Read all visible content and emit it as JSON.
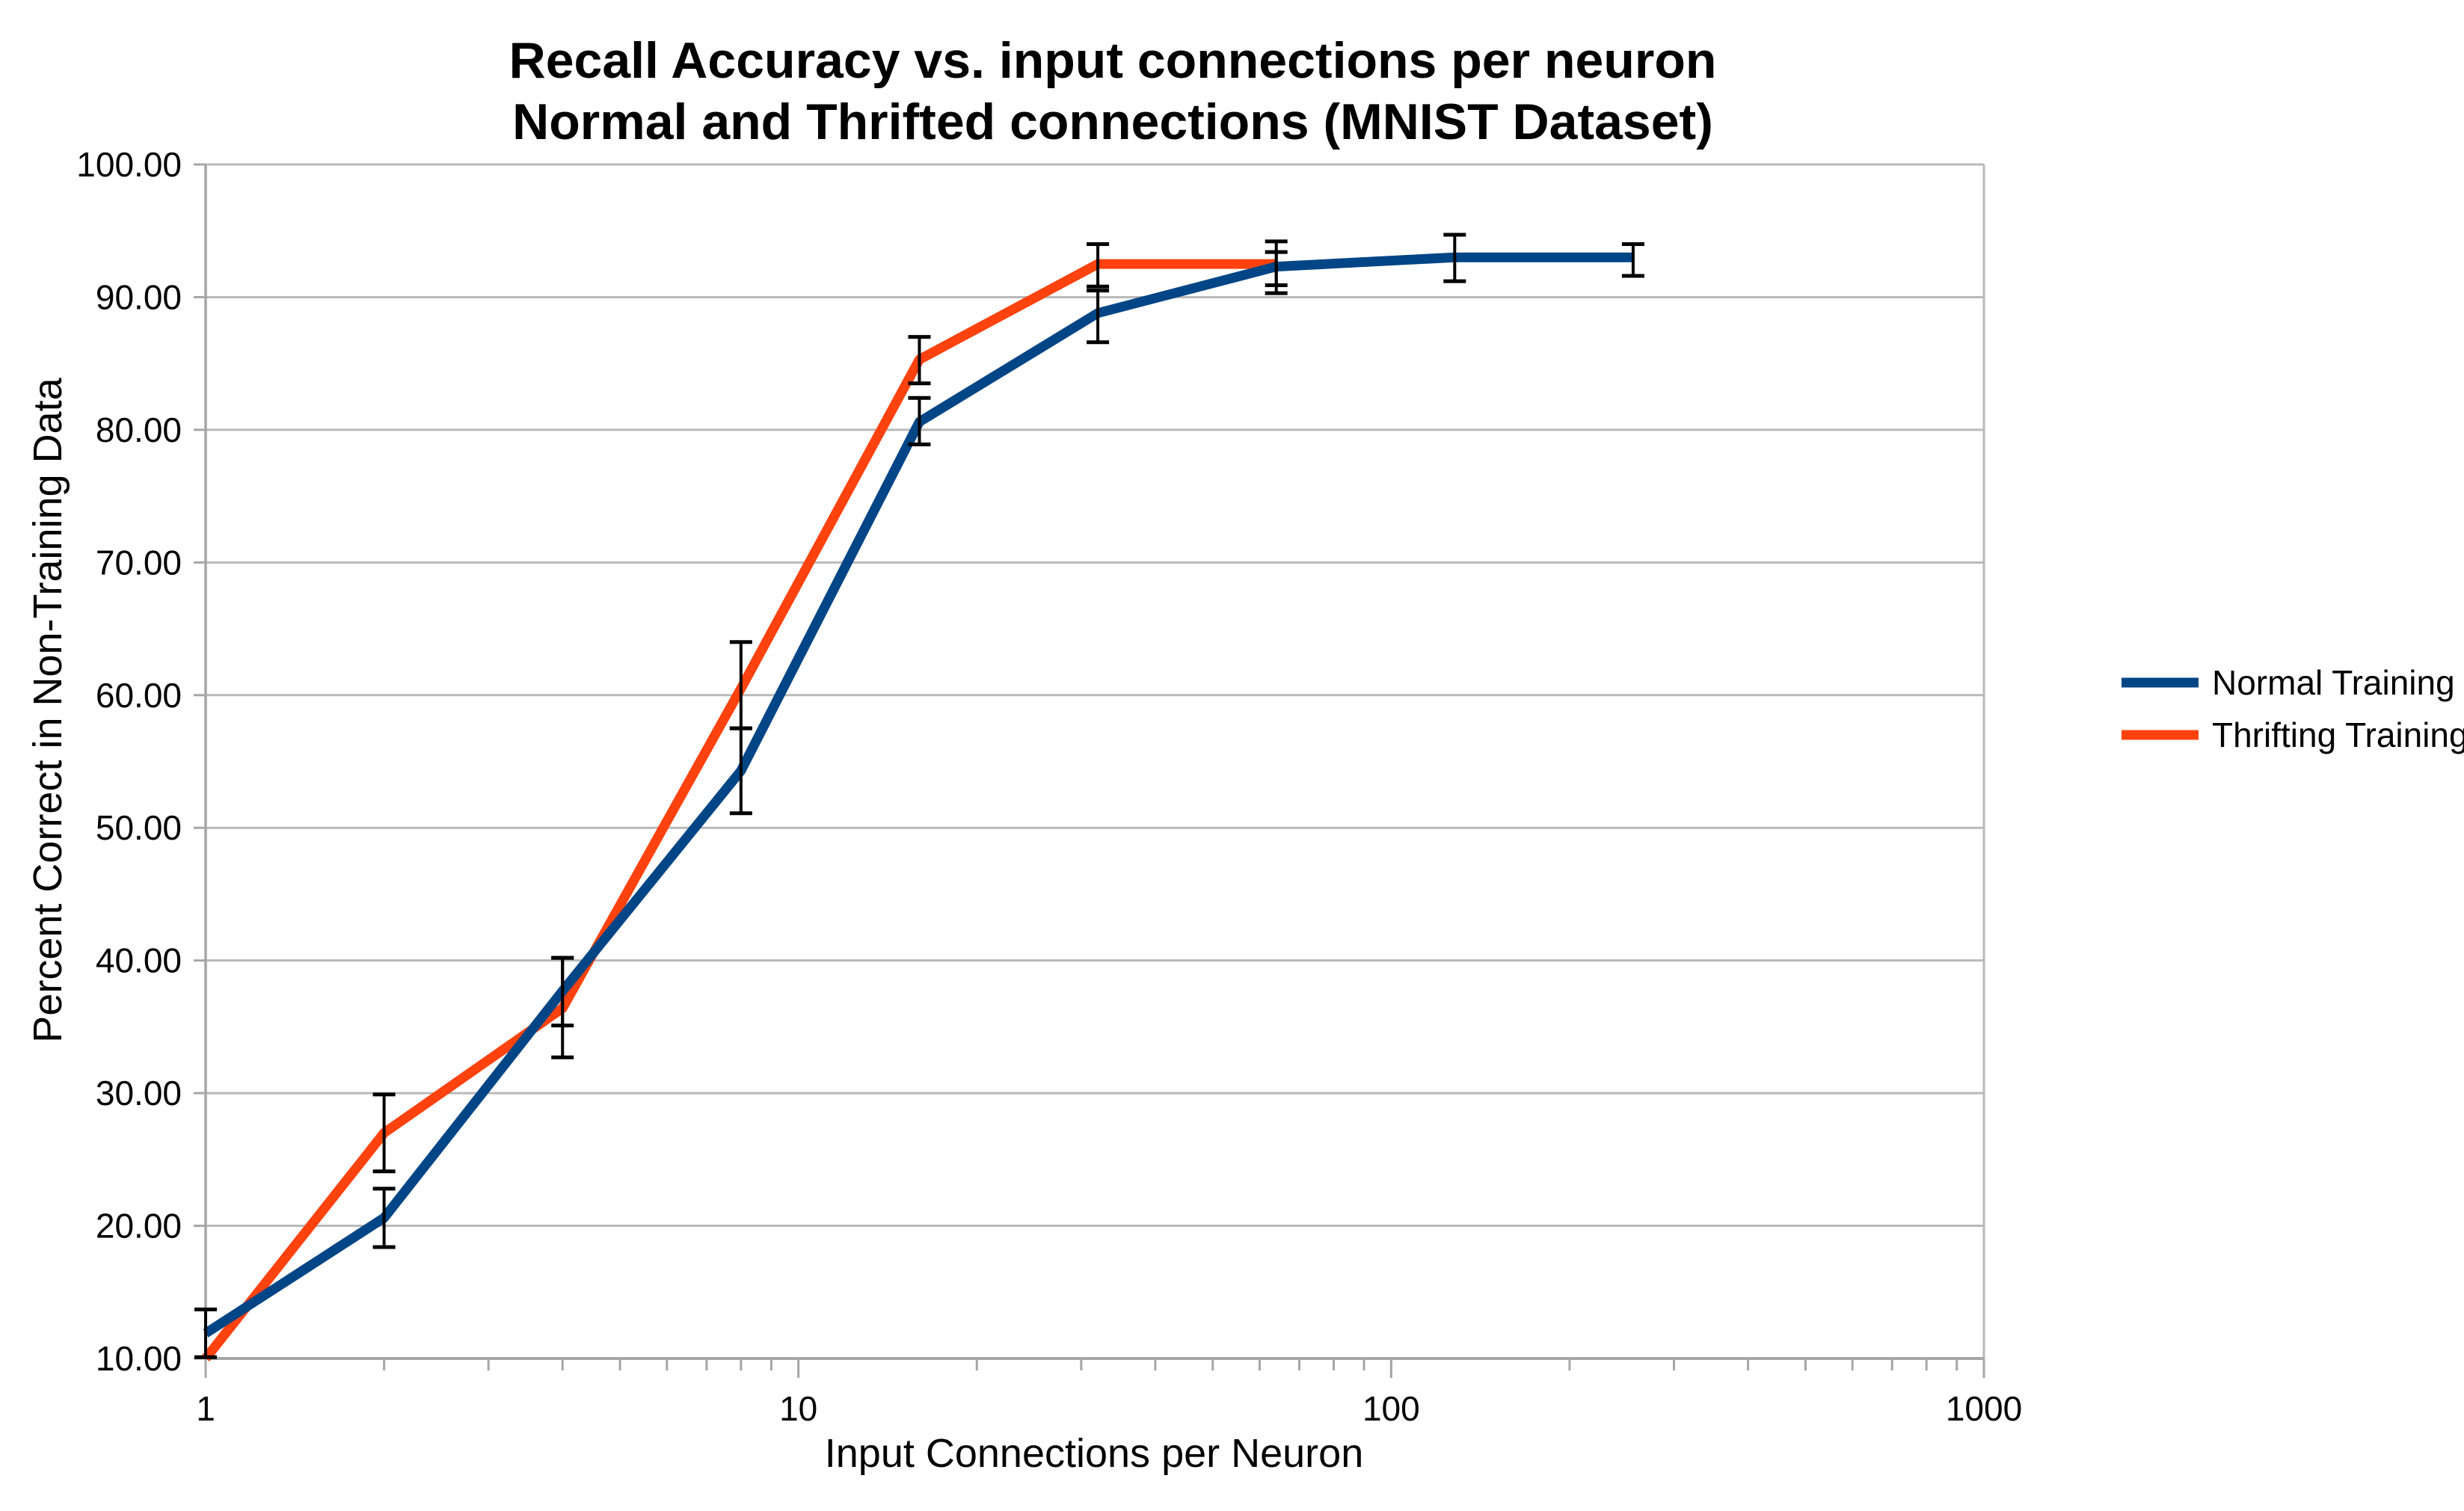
{
  "chart_data": {
    "type": "line",
    "title_line1": "Recall Accuracy vs. input connections per neuron",
    "title_line2": "Normal and Thrifted connections (MNIST Dataset)",
    "xlabel": "Input Connections per Neuron",
    "ylabel": "Percent Correct in Non-Training Data",
    "x_scale": "log",
    "xlim": [
      1,
      1000
    ],
    "ylim": [
      10,
      100
    ],
    "y_tick_step": 10,
    "y_tick_labels": [
      "10.00",
      "20.00",
      "30.00",
      "40.00",
      "50.00",
      "60.00",
      "70.00",
      "80.00",
      "90.00",
      "100.00"
    ],
    "x_major_ticks": [
      1,
      10,
      100,
      1000
    ],
    "x_major_tick_labels": [
      "1",
      "10",
      "100",
      "1000"
    ],
    "grid": "horizontal",
    "legend_position": "right",
    "colors": {
      "grid": "#b9b9b9",
      "axis": "#a6a6a6",
      "error_bar": "#000000",
      "text": "#000000",
      "background": "#ffffff"
    },
    "series": [
      {
        "name": "Normal Training",
        "color": "#004586",
        "points": [
          {
            "x": 1,
            "y": 11.9,
            "err_plus": 1.8,
            "err_minus": 1.8
          },
          {
            "x": 2,
            "y": 20.6,
            "err_plus": 2.2,
            "err_minus": 2.2
          },
          {
            "x": 4,
            "y": 37.7,
            "err_plus": 2.5,
            "err_minus": 2.6
          },
          {
            "x": 8,
            "y": 54.3,
            "err_plus": 3.2,
            "err_minus": 3.2
          },
          {
            "x": 16,
            "y": 80.6,
            "err_plus": 1.8,
            "err_minus": 1.7
          },
          {
            "x": 32,
            "y": 88.8,
            "err_plus": 1.7,
            "err_minus": 2.2
          },
          {
            "x": 64,
            "y": 92.3,
            "err_plus": 1.1,
            "err_minus": 2.0
          },
          {
            "x": 128,
            "y": 93.0,
            "err_plus": 1.7,
            "err_minus": 1.8
          },
          {
            "x": 256,
            "y": 93.0,
            "err_plus": 1.0,
            "err_minus": 1.4
          }
        ]
      },
      {
        "name": "Thrifting Training",
        "color": "#FF420E",
        "points": [
          {
            "x": 1,
            "y": 10.0,
            "err_plus": 0,
            "err_minus": 0
          },
          {
            "x": 2,
            "y": 27.0,
            "err_plus": 2.9,
            "err_minus": 2.9
          },
          {
            "x": 4,
            "y": 36.4,
            "err_plus": 3.8,
            "err_minus": 3.7
          },
          {
            "x": 8,
            "y": 60.5,
            "err_plus": 3.5,
            "err_minus": 3.0
          },
          {
            "x": 16,
            "y": 85.3,
            "err_plus": 1.7,
            "err_minus": 1.8
          },
          {
            "x": 32,
            "y": 92.5,
            "err_plus": 1.5,
            "err_minus": 1.7
          },
          {
            "x": 64,
            "y": 92.5,
            "err_plus": 1.7,
            "err_minus": 1.6
          }
        ]
      }
    ]
  }
}
